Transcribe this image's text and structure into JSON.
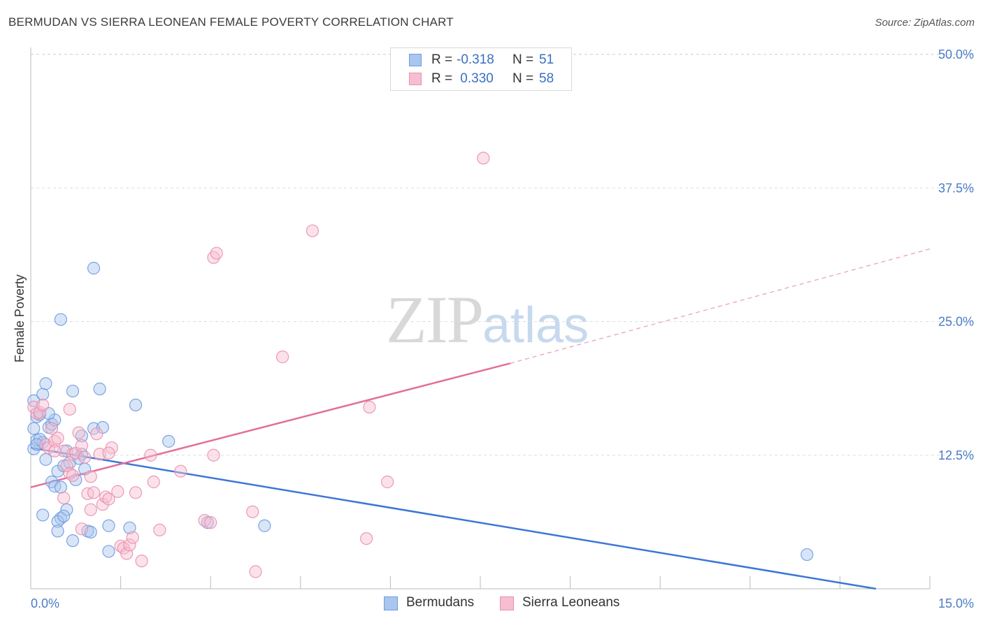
{
  "header": {
    "title": "BERMUDAN VS SIERRA LEONEAN FEMALE POVERTY CORRELATION CHART",
    "source": "Source: ZipAtlas.com"
  },
  "watermark": {
    "zip": "ZIP",
    "atlas": "atlas"
  },
  "legend": {
    "rows": [
      {
        "r_label": "R = ",
        "r_value": "-0.318",
        "n_label": "N = ",
        "n_value": "51",
        "color": "#a9c6ee",
        "border": "#6f9be0"
      },
      {
        "r_label": "R = ",
        "r_value": " 0.330",
        "n_label": "N = ",
        "n_value": "58",
        "color": "#f7bed1",
        "border": "#ea8fae"
      }
    ]
  },
  "chart_data": {
    "type": "scatter",
    "title": "BERMUDAN VS SIERRA LEONEAN FEMALE POVERTY CORRELATION CHART",
    "xlabel": "",
    "ylabel": "Female Poverty",
    "xlim": [
      0,
      15
    ],
    "ylim": [
      0,
      50
    ],
    "x_tick_labels": [
      {
        "value": 0,
        "label": "0.0%"
      },
      {
        "value": 15,
        "label": "15.0%"
      }
    ],
    "y_tick_labels": [
      {
        "value": 12.5,
        "label": "12.5%"
      },
      {
        "value": 25,
        "label": "25.0%"
      },
      {
        "value": 37.5,
        "label": "37.5%"
      },
      {
        "value": 50,
        "label": "50.0%"
      }
    ],
    "grid": true,
    "legend_position": "bottom-center",
    "series": [
      {
        "name": "Bermudans",
        "color": "#6f9be0",
        "fill": "#a9c6ee",
        "trend": {
          "x": [
            0,
            14.1
          ],
          "y": [
            13.2,
            0
          ],
          "dashed_to": null
        },
        "points": [
          [
            0.05,
            17.6
          ],
          [
            0.1,
            16.1
          ],
          [
            0.15,
            16.3
          ],
          [
            0.2,
            18.2
          ],
          [
            0.25,
            19.2
          ],
          [
            0.05,
            13.1
          ],
          [
            0.1,
            13.9
          ],
          [
            0.2,
            13.7
          ],
          [
            0.3,
            15.1
          ],
          [
            0.35,
            15.4
          ],
          [
            0.4,
            15.8
          ],
          [
            0.25,
            12.1
          ],
          [
            0.35,
            10.0
          ],
          [
            0.4,
            9.6
          ],
          [
            0.45,
            11.0
          ],
          [
            0.5,
            9.5
          ],
          [
            0.55,
            11.5
          ],
          [
            0.6,
            12.9
          ],
          [
            0.65,
            11.8
          ],
          [
            0.6,
            7.4
          ],
          [
            0.5,
            6.6
          ],
          [
            0.45,
            6.3
          ],
          [
            0.45,
            5.4
          ],
          [
            0.7,
            4.5
          ],
          [
            0.75,
            10.2
          ],
          [
            0.85,
            12.6
          ],
          [
            0.85,
            14.3
          ],
          [
            0.9,
            11.2
          ],
          [
            0.95,
            5.4
          ],
          [
            1.0,
            5.3
          ],
          [
            1.05,
            15.0
          ],
          [
            1.15,
            18.7
          ],
          [
            1.2,
            15.1
          ],
          [
            1.3,
            5.9
          ],
          [
            1.3,
            3.5
          ],
          [
            1.65,
            5.7
          ],
          [
            1.75,
            17.2
          ],
          [
            2.3,
            13.8
          ],
          [
            2.95,
            6.2
          ],
          [
            3.9,
            5.9
          ],
          [
            12.95,
            3.2
          ],
          [
            0.5,
            25.2
          ],
          [
            1.05,
            30.0
          ],
          [
            0.7,
            18.5
          ],
          [
            0.2,
            6.9
          ],
          [
            0.05,
            15.0
          ],
          [
            0.3,
            16.4
          ],
          [
            0.15,
            14.0
          ],
          [
            0.8,
            12.2
          ],
          [
            0.55,
            6.8
          ],
          [
            0.1,
            13.5
          ]
        ]
      },
      {
        "name": "Sierra Leoneans",
        "color": "#ea8fae",
        "fill": "#f7bed1",
        "trend": {
          "x": [
            0,
            8.0
          ],
          "y": [
            9.5,
            21.1
          ],
          "dashed_x": [
            8.0,
            15.0
          ],
          "dashed_y": [
            21.1,
            31.8
          ]
        },
        "points": [
          [
            0.05,
            17.0
          ],
          [
            0.1,
            16.4
          ],
          [
            0.15,
            16.5
          ],
          [
            0.25,
            13.5
          ],
          [
            0.3,
            13.2
          ],
          [
            0.35,
            15.0
          ],
          [
            0.4,
            13.8
          ],
          [
            0.45,
            14.1
          ],
          [
            0.55,
            12.9
          ],
          [
            0.6,
            11.5
          ],
          [
            0.65,
            10.8
          ],
          [
            0.7,
            12.6
          ],
          [
            0.75,
            12.7
          ],
          [
            0.8,
            14.6
          ],
          [
            0.85,
            13.4
          ],
          [
            0.9,
            12.3
          ],
          [
            0.95,
            8.9
          ],
          [
            1.0,
            10.5
          ],
          [
            1.05,
            9.0
          ],
          [
            1.1,
            14.5
          ],
          [
            1.15,
            12.6
          ],
          [
            1.2,
            7.9
          ],
          [
            1.25,
            8.6
          ],
          [
            1.3,
            8.4
          ],
          [
            1.35,
            13.2
          ],
          [
            1.45,
            9.1
          ],
          [
            1.5,
            4.0
          ],
          [
            1.55,
            3.8
          ],
          [
            1.6,
            3.3
          ],
          [
            1.65,
            4.1
          ],
          [
            1.7,
            4.8
          ],
          [
            1.75,
            9.0
          ],
          [
            1.85,
            2.6
          ],
          [
            2.0,
            12.5
          ],
          [
            2.05,
            10.0
          ],
          [
            2.15,
            5.5
          ],
          [
            2.5,
            11.0
          ],
          [
            2.9,
            6.4
          ],
          [
            3.0,
            6.2
          ],
          [
            3.05,
            31.0
          ],
          [
            3.1,
            31.4
          ],
          [
            3.05,
            12.5
          ],
          [
            3.7,
            7.2
          ],
          [
            3.75,
            1.6
          ],
          [
            4.2,
            21.7
          ],
          [
            4.7,
            33.5
          ],
          [
            5.6,
            4.7
          ],
          [
            5.65,
            17.0
          ],
          [
            5.95,
            10.0
          ],
          [
            7.55,
            40.3
          ],
          [
            0.85,
            5.6
          ],
          [
            0.55,
            8.5
          ],
          [
            0.7,
            10.6
          ],
          [
            1.3,
            12.7
          ],
          [
            0.2,
            17.2
          ],
          [
            0.4,
            12.9
          ],
          [
            1.0,
            7.4
          ],
          [
            0.65,
            16.8
          ]
        ]
      }
    ]
  }
}
